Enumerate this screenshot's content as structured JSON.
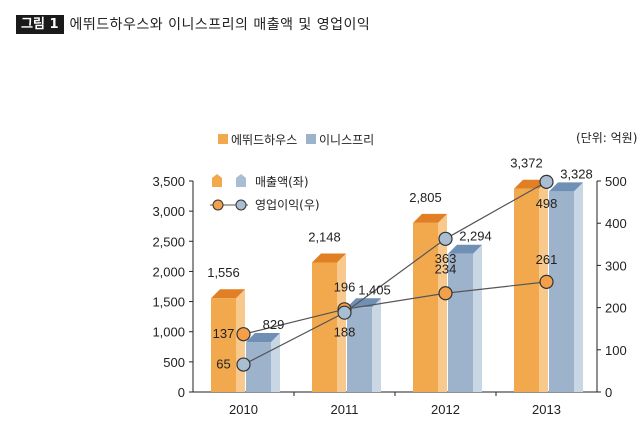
{
  "figure": {
    "tag": "그림 1",
    "title": "에뛰드하우스와 이니스프리의 매출액 및 영업이익",
    "unit": "(단위: 억원)"
  },
  "colors": {
    "etude_front": "#f2a94d",
    "etude_top": "#e07f24",
    "etude_side": "#f8c98c",
    "innis_front": "#9db3cc",
    "innis_top": "#6f8fb4",
    "innis_side": "#c9d6e4",
    "marker_orange": "#f4a04a",
    "marker_blue": "#a9bed3"
  },
  "legend": {
    "brand_etude": "에뛰드하우스",
    "brand_innis": "이니스프리",
    "sales": "매출액(좌)",
    "profit": "영업이익(우)"
  },
  "chart_data": {
    "type": "bar",
    "categories": [
      "2010",
      "2011",
      "2012",
      "2013"
    ],
    "series": [
      {
        "name": "에뛰드하우스 매출액(좌)",
        "kind": "bar",
        "axis": "left",
        "values": [
          1556,
          2148,
          2805,
          3372
        ],
        "labels": [
          "1,556",
          "2,148",
          "2,805",
          "3,372"
        ]
      },
      {
        "name": "이니스프리 매출액(좌)",
        "kind": "bar",
        "axis": "left",
        "values": [
          829,
          1405,
          2294,
          3328
        ],
        "labels": [
          "829",
          "1,405",
          "2,294",
          "3,328"
        ]
      },
      {
        "name": "에뛰드하우스 영업이익(우)",
        "kind": "line",
        "axis": "right",
        "values": [
          137,
          196,
          234,
          261
        ],
        "labels": [
          "137",
          "196",
          "234",
          "261"
        ]
      },
      {
        "name": "이니스프리 영업이익(우)",
        "kind": "line",
        "axis": "right",
        "values": [
          65,
          188,
          363,
          498
        ],
        "labels": [
          "65",
          "188",
          "363",
          "498"
        ]
      }
    ],
    "y_left": {
      "lim": [
        0,
        3500
      ],
      "ticks": [
        0,
        500,
        1000,
        1500,
        2000,
        2500,
        3000,
        3500
      ],
      "tick_labels": [
        "0",
        "500",
        "1,000",
        "1,500",
        "2,000",
        "2,500",
        "3,000",
        "3,500"
      ]
    },
    "y_right": {
      "lim": [
        0,
        500
      ],
      "ticks": [
        0,
        100,
        200,
        300,
        400,
        500
      ],
      "tick_labels": [
        "0",
        "100",
        "200",
        "300",
        "400",
        "500"
      ]
    },
    "grid": false,
    "legend_position": "top-left"
  }
}
